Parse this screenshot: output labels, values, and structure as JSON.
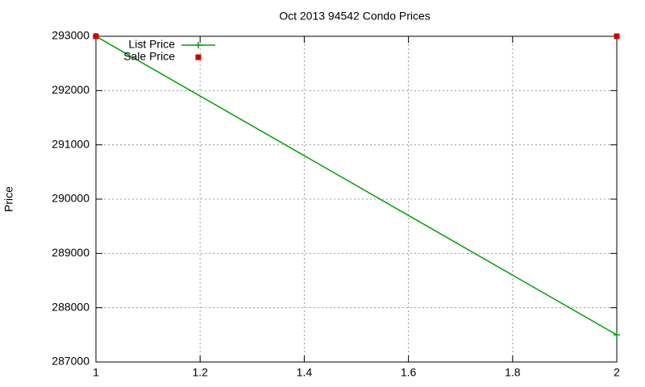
{
  "chart_data": {
    "type": "line",
    "title": "Oct 2013 94542 Condo Prices",
    "y_label": "Price",
    "x": [
      1,
      2
    ],
    "series": [
      {
        "name": "List Price",
        "color": "#00a000",
        "style": "linespoints",
        "values": [
          293000,
          287500
        ]
      },
      {
        "name": "Sale Price",
        "color": "#cc0000",
        "style": "points",
        "values": [
          293000,
          293000
        ]
      }
    ],
    "xlim": [
      1,
      2
    ],
    "xticks": [
      1,
      1.2,
      1.4,
      1.6,
      1.8,
      2
    ],
    "ylim": [
      287000,
      293000
    ],
    "yticks": [
      287000,
      288000,
      289000,
      290000,
      291000,
      292000,
      293000
    ],
    "grid": true,
    "legend": "top-left"
  }
}
